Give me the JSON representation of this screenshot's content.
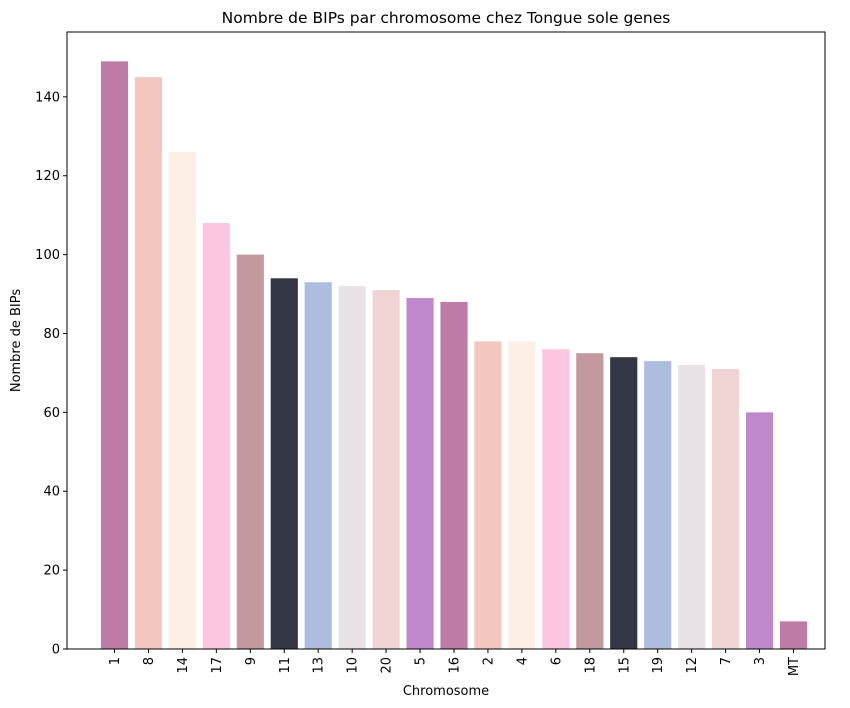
{
  "chart_data": {
    "type": "bar",
    "title": "Nombre de BIPs par chromosome chez Tongue sole genes",
    "xlabel": "Chromosome",
    "ylabel": "Nombre de BIPs",
    "categories": [
      "1",
      "8",
      "14",
      "17",
      "9",
      "11",
      "13",
      "10",
      "20",
      "5",
      "16",
      "2",
      "4",
      "6",
      "18",
      "15",
      "19",
      "12",
      "7",
      "3",
      "MT"
    ],
    "values": [
      149,
      145,
      126,
      108,
      100,
      94,
      93,
      92,
      91,
      89,
      88,
      78,
      78,
      76,
      75,
      74,
      73,
      72,
      71,
      60,
      7
    ],
    "colors": [
      "#bd7ba6",
      "#f4c6c0",
      "#fdefe6",
      "#fcc5e0",
      "#c4989f",
      "#333745",
      "#acbde0",
      "#e8e1e6",
      "#f0d4d4",
      "#c088cc",
      "#bd7ba6",
      "#f4c6c0",
      "#fdefe6",
      "#fcc5e0",
      "#c4989f",
      "#333745",
      "#acbde0",
      "#e8e1e6",
      "#f0d4d4",
      "#c088cc",
      "#bd7ba6"
    ],
    "ylim": [
      0,
      156.45
    ],
    "yticks": [
      0,
      20,
      40,
      60,
      80,
      100,
      120,
      140
    ],
    "xtick_rotation": "vertical",
    "grid": false,
    "legend": "none"
  }
}
